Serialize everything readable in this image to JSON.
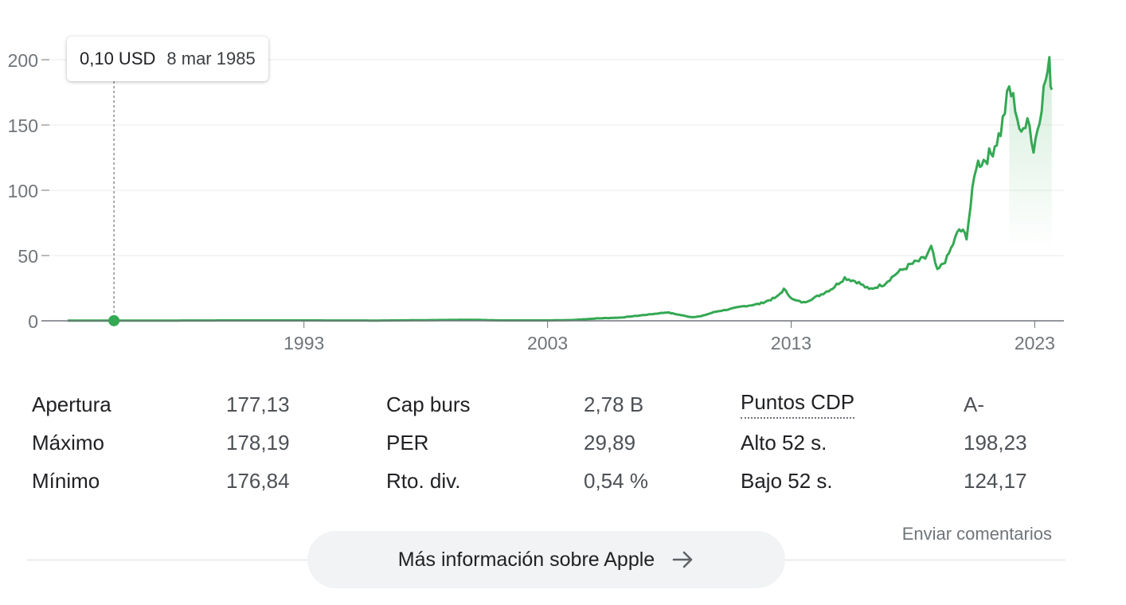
{
  "chart_data": {
    "type": "area",
    "title": "",
    "xlabel": "",
    "ylabel": "",
    "x_ticks": [
      1993,
      2003,
      2013,
      2023
    ],
    "y_ticks": [
      0,
      50,
      100,
      150,
      200
    ],
    "xlim": [
      1983.3,
      2024.0
    ],
    "ylim": [
      0,
      200
    ],
    "grid": true,
    "line_color": "#34a853",
    "series": [
      {
        "points": [
          [
            1983.3,
            0.1
          ],
          [
            1985.2,
            0.1
          ],
          [
            1990,
            0.3
          ],
          [
            1993,
            0.3
          ],
          [
            1996,
            0.2
          ],
          [
            2000,
            0.8
          ],
          [
            2001,
            0.3
          ],
          [
            2003,
            0.3
          ],
          [
            2004,
            0.6
          ],
          [
            2005,
            1.8
          ],
          [
            2006,
            2.5
          ],
          [
            2007,
            4.5
          ],
          [
            2007.9,
            6.5
          ],
          [
            2008.3,
            5
          ],
          [
            2008.9,
            2.8
          ],
          [
            2009.3,
            3.5
          ],
          [
            2009.9,
            7
          ],
          [
            2010.5,
            9
          ],
          [
            2011,
            11
          ],
          [
            2011.7,
            13
          ],
          [
            2012.4,
            18
          ],
          [
            2012.7,
            24
          ],
          [
            2013.1,
            16
          ],
          [
            2013.5,
            14
          ],
          [
            2014,
            18
          ],
          [
            2014.7,
            25
          ],
          [
            2015.2,
            33
          ],
          [
            2015.7,
            30
          ],
          [
            2016.2,
            24
          ],
          [
            2016.8,
            28
          ],
          [
            2017.3,
            36
          ],
          [
            2017.9,
            43
          ],
          [
            2018.5,
            48
          ],
          [
            2018.75,
            56
          ],
          [
            2019.0,
            38
          ],
          [
            2019.4,
            48
          ],
          [
            2019.9,
            70
          ],
          [
            2020.2,
            65
          ],
          [
            2020.6,
            120
          ],
          [
            2020.9,
            123
          ],
          [
            2021.2,
            128
          ],
          [
            2021.6,
            145
          ],
          [
            2021.95,
            178
          ],
          [
            2022.2,
            165
          ],
          [
            2022.45,
            140
          ],
          [
            2022.7,
            160
          ],
          [
            2022.95,
            130
          ],
          [
            2023.2,
            158
          ],
          [
            2023.45,
            185
          ],
          [
            2023.6,
            195
          ],
          [
            2023.7,
            177
          ]
        ]
      }
    ],
    "hover": {
      "x": 1985.2,
      "y": 0.1,
      "price_label": "0,10 USD",
      "date_label": "8 mar 1985"
    }
  },
  "stats": {
    "rows": [
      {
        "l1": "Apertura",
        "v1": "177,13",
        "l2": "Cap burs",
        "v2": "2,78 B",
        "l3": "Puntos CDP",
        "v3": "A-"
      },
      {
        "l1": "Máximo",
        "v1": "178,19",
        "l2": "PER",
        "v2": "29,89",
        "l3": "Alto 52 s.",
        "v3": "198,23"
      },
      {
        "l1": "Mínimo",
        "v1": "176,84",
        "l2": "Rto. div.",
        "v2": "0,54 %",
        "l3": "Bajo 52 s.",
        "v3": "124,17"
      }
    ]
  },
  "footer": {
    "feedback_label": "Enviar comentarios",
    "more_info_label": "Más información sobre Apple",
    "arrow_icon": "arrow-right-icon"
  }
}
